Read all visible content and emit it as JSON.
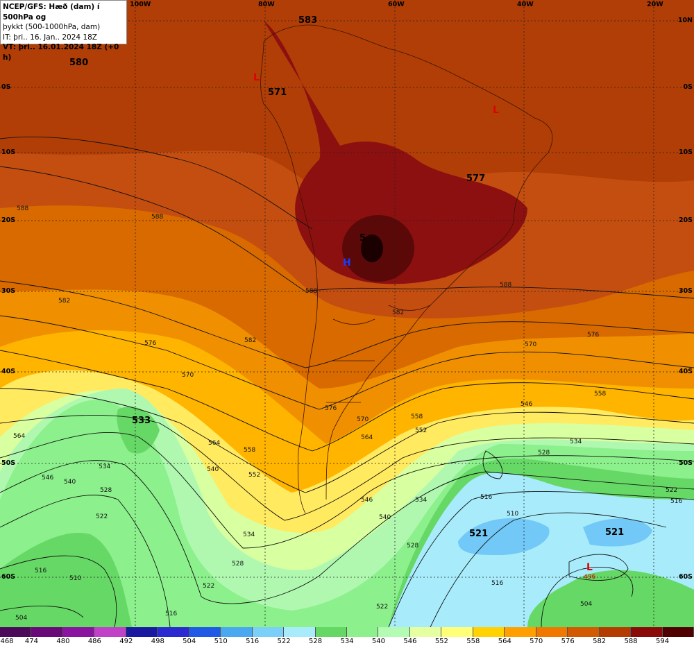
{
  "info": {
    "line1": "NCEP/GFS: Hæð (dam) í 500hPa og",
    "line2": "þykkt (500-1000hPa, dam)",
    "line3": "IT: þri.. 16. Jan.. 2024 18Z",
    "line4": "VT: þri.. 16.01.2024 18Z (+0 h)"
  },
  "lon_labels": [
    "100W",
    "80W",
    "60W",
    "40W",
    "20W"
  ],
  "lat_labels": [
    "10N",
    "0S",
    "10S",
    "20S",
    "30S",
    "40S",
    "50S",
    "60S"
  ],
  "values": [
    "583",
    "580",
    "571",
    "577",
    "533",
    "521",
    "521",
    "5"
  ],
  "pressure_systems": [
    {
      "type": "L",
      "value": ""
    },
    {
      "type": "L",
      "value": ""
    },
    {
      "type": "H",
      "value": ""
    },
    {
      "type": "L",
      "value": "496"
    }
  ],
  "contour_labels": [
    "588",
    "588",
    "588",
    "582",
    "582",
    "576",
    "576",
    "570",
    "570",
    "564",
    "564",
    "558",
    "558",
    "552",
    "552",
    "546",
    "546",
    "540",
    "540",
    "534",
    "534",
    "528",
    "528",
    "522",
    "522",
    "516",
    "516",
    "510",
    "504",
    "582",
    "576",
    "570",
    "564",
    "558",
    "546",
    "540",
    "534",
    "528",
    "522",
    "516",
    "516",
    "510",
    "534",
    "528",
    "522",
    "516",
    "504",
    "588"
  ],
  "legend": {
    "ticks": [
      "468",
      "474",
      "480",
      "486",
      "492",
      "498",
      "504",
      "510",
      "516",
      "522",
      "528",
      "534",
      "540",
      "546",
      "552",
      "558",
      "564",
      "570",
      "576",
      "582",
      "588",
      "594"
    ],
    "colors": [
      "#4b0a5a",
      "#6a0a78",
      "#8a14a0",
      "#c040c8",
      "#1a1aa0",
      "#2a2ad0",
      "#1e5ae6",
      "#4aa8f0",
      "#7ad0f8",
      "#a8ecfc",
      "#64d764",
      "#8cf08c",
      "#b4fcb4",
      "#e6ffa0",
      "#ffff78",
      "#ffd200",
      "#ffa000",
      "#f07800",
      "#d25a00",
      "#b43c00",
      "#8a0a0a",
      "#500000"
    ]
  }
}
